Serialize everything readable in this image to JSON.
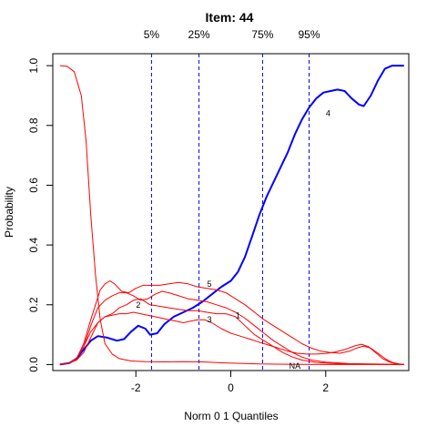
{
  "chart_data": {
    "type": "line",
    "title": "Item:  44",
    "xlabel": "Norm 0 1 Quantiles",
    "ylabel": "Probability",
    "xlim": [
      -3.75,
      3.75
    ],
    "ylim": [
      -0.02,
      1.04
    ],
    "x_ticks": [
      -2,
      0,
      2
    ],
    "x_tick_labels": [
      "-2",
      "0",
      "2"
    ],
    "y_ticks": [
      0.0,
      0.2,
      0.4,
      0.6,
      0.8,
      1.0
    ],
    "y_tick_labels": [
      "0.0",
      "0.2",
      "0.4",
      "0.6",
      "0.8",
      "1.0"
    ],
    "grid": false,
    "quantiles": [
      {
        "label": "5%",
        "x": -1.67
      },
      {
        "label": "25%",
        "x": -0.67
      },
      {
        "label": "75%",
        "x": 0.67
      },
      {
        "label": "95%",
        "x": 1.65
      }
    ],
    "series": [
      {
        "name": "4",
        "color": "#0000ff",
        "label_at": [
          2.05,
          0.84
        ],
        "points": [
          [
            -3.6,
            0.0
          ],
          [
            -3.4,
            0.005
          ],
          [
            -3.25,
            0.02
          ],
          [
            -3.1,
            0.05
          ],
          [
            -2.95,
            0.08
          ],
          [
            -2.8,
            0.095
          ],
          [
            -2.6,
            0.09
          ],
          [
            -2.4,
            0.08
          ],
          [
            -2.25,
            0.085
          ],
          [
            -2.1,
            0.11
          ],
          [
            -1.95,
            0.13
          ],
          [
            -1.8,
            0.12
          ],
          [
            -1.7,
            0.1
          ],
          [
            -1.55,
            0.105
          ],
          [
            -1.4,
            0.135
          ],
          [
            -1.2,
            0.16
          ],
          [
            -1.0,
            0.175
          ],
          [
            -0.8,
            0.19
          ],
          [
            -0.6,
            0.21
          ],
          [
            -0.4,
            0.235
          ],
          [
            -0.2,
            0.26
          ],
          [
            0.0,
            0.28
          ],
          [
            0.15,
            0.31
          ],
          [
            0.3,
            0.36
          ],
          [
            0.45,
            0.43
          ],
          [
            0.6,
            0.5
          ],
          [
            0.75,
            0.56
          ],
          [
            0.9,
            0.61
          ],
          [
            1.05,
            0.66
          ],
          [
            1.2,
            0.71
          ],
          [
            1.35,
            0.77
          ],
          [
            1.5,
            0.82
          ],
          [
            1.65,
            0.86
          ],
          [
            1.8,
            0.89
          ],
          [
            1.95,
            0.91
          ],
          [
            2.1,
            0.915
          ],
          [
            2.25,
            0.92
          ],
          [
            2.4,
            0.915
          ],
          [
            2.55,
            0.89
          ],
          [
            2.7,
            0.87
          ],
          [
            2.8,
            0.865
          ],
          [
            2.95,
            0.9
          ],
          [
            3.1,
            0.95
          ],
          [
            3.25,
            0.99
          ],
          [
            3.4,
            1.0
          ],
          [
            3.65,
            1.0
          ]
        ]
      },
      {
        "name": "1",
        "color": "#ff0000",
        "label_at": [
          0.15,
          0.165
        ],
        "points": [
          [
            -3.6,
            0.0
          ],
          [
            -3.4,
            0.005
          ],
          [
            -3.25,
            0.02
          ],
          [
            -3.1,
            0.06
          ],
          [
            -2.95,
            0.11
          ],
          [
            -2.8,
            0.14
          ],
          [
            -2.65,
            0.16
          ],
          [
            -2.5,
            0.17
          ],
          [
            -2.35,
            0.19
          ],
          [
            -2.2,
            0.2
          ],
          [
            -2.05,
            0.215
          ],
          [
            -1.9,
            0.22
          ],
          [
            -1.7,
            0.2
          ],
          [
            -1.5,
            0.195
          ],
          [
            -1.3,
            0.19
          ],
          [
            -1.1,
            0.185
          ],
          [
            -0.9,
            0.18
          ],
          [
            -0.7,
            0.18
          ],
          [
            -0.5,
            0.175
          ],
          [
            -0.3,
            0.17
          ],
          [
            -0.1,
            0.17
          ],
          [
            0.1,
            0.16
          ],
          [
            0.3,
            0.13
          ],
          [
            0.5,
            0.1
          ],
          [
            0.7,
            0.08
          ],
          [
            0.9,
            0.06
          ],
          [
            1.1,
            0.04
          ],
          [
            1.3,
            0.025
          ],
          [
            1.5,
            0.015
          ],
          [
            1.8,
            0.007
          ],
          [
            2.2,
            0.003
          ],
          [
            3.0,
            0.001
          ],
          [
            3.65,
            0.0
          ]
        ]
      },
      {
        "name": "2",
        "color": "#ff0000",
        "label_at": [
          -1.95,
          0.2
        ],
        "points": [
          [
            -3.6,
            0.0
          ],
          [
            -3.4,
            0.005
          ],
          [
            -3.25,
            0.02
          ],
          [
            -3.1,
            0.06
          ],
          [
            -2.95,
            0.13
          ],
          [
            -2.8,
            0.19
          ],
          [
            -2.65,
            0.215
          ],
          [
            -2.5,
            0.23
          ],
          [
            -2.35,
            0.24
          ],
          [
            -2.2,
            0.24
          ],
          [
            -2.05,
            0.23
          ],
          [
            -1.9,
            0.215
          ],
          [
            -1.75,
            0.22
          ],
          [
            -1.6,
            0.235
          ],
          [
            -1.45,
            0.245
          ],
          [
            -1.3,
            0.24
          ],
          [
            -1.1,
            0.23
          ],
          [
            -0.9,
            0.22
          ],
          [
            -0.7,
            0.215
          ],
          [
            -0.5,
            0.21
          ],
          [
            -0.3,
            0.2
          ],
          [
            -0.1,
            0.19
          ],
          [
            0.1,
            0.175
          ],
          [
            0.3,
            0.155
          ],
          [
            0.5,
            0.13
          ],
          [
            0.7,
            0.105
          ],
          [
            0.9,
            0.08
          ],
          [
            1.1,
            0.06
          ],
          [
            1.3,
            0.04
          ],
          [
            1.5,
            0.025
          ],
          [
            1.7,
            0.015
          ],
          [
            2.0,
            0.008
          ],
          [
            2.5,
            0.003
          ],
          [
            3.65,
            0.0
          ]
        ]
      },
      {
        "name": "3",
        "color": "#ff0000",
        "label_at": [
          -0.45,
          0.15
        ],
        "points": [
          [
            -3.6,
            0.0
          ],
          [
            -3.4,
            0.005
          ],
          [
            -3.25,
            0.015
          ],
          [
            -3.1,
            0.04
          ],
          [
            -2.95,
            0.09
          ],
          [
            -2.8,
            0.14
          ],
          [
            -2.65,
            0.16
          ],
          [
            -2.5,
            0.165
          ],
          [
            -2.35,
            0.17
          ],
          [
            -2.2,
            0.17
          ],
          [
            -2.05,
            0.175
          ],
          [
            -1.9,
            0.17
          ],
          [
            -1.75,
            0.165
          ],
          [
            -1.6,
            0.16
          ],
          [
            -1.45,
            0.155
          ],
          [
            -1.3,
            0.15
          ],
          [
            -1.15,
            0.145
          ],
          [
            -1.0,
            0.14
          ],
          [
            -0.85,
            0.145
          ],
          [
            -0.7,
            0.15
          ],
          [
            -0.55,
            0.15
          ],
          [
            -0.4,
            0.14
          ],
          [
            -0.2,
            0.12
          ],
          [
            0.0,
            0.105
          ],
          [
            0.2,
            0.095
          ],
          [
            0.4,
            0.085
          ],
          [
            0.6,
            0.075
          ],
          [
            0.8,
            0.065
          ],
          [
            1.0,
            0.055
          ],
          [
            1.2,
            0.045
          ],
          [
            1.4,
            0.038
          ],
          [
            1.6,
            0.035
          ],
          [
            1.8,
            0.035
          ],
          [
            2.0,
            0.037
          ],
          [
            2.2,
            0.042
          ],
          [
            2.4,
            0.05
          ],
          [
            2.6,
            0.062
          ],
          [
            2.75,
            0.068
          ],
          [
            2.9,
            0.06
          ],
          [
            3.05,
            0.04
          ],
          [
            3.2,
            0.02
          ],
          [
            3.35,
            0.008
          ],
          [
            3.5,
            0.002
          ],
          [
            3.65,
            0.0
          ]
        ]
      },
      {
        "name": "5",
        "color": "#ff0000",
        "label_at": [
          -0.45,
          0.27
        ],
        "points": [
          [
            -3.6,
            0.0
          ],
          [
            -3.4,
            0.005
          ],
          [
            -3.25,
            0.02
          ],
          [
            -3.1,
            0.07
          ],
          [
            -2.95,
            0.15
          ],
          [
            -2.85,
            0.2
          ],
          [
            -2.75,
            0.25
          ],
          [
            -2.65,
            0.27
          ],
          [
            -2.55,
            0.28
          ],
          [
            -2.45,
            0.27
          ],
          [
            -2.3,
            0.245
          ],
          [
            -2.15,
            0.24
          ],
          [
            -2.0,
            0.255
          ],
          [
            -1.85,
            0.265
          ],
          [
            -1.7,
            0.265
          ],
          [
            -1.5,
            0.265
          ],
          [
            -1.3,
            0.27
          ],
          [
            -1.1,
            0.275
          ],
          [
            -0.9,
            0.27
          ],
          [
            -0.7,
            0.26
          ],
          [
            -0.5,
            0.255
          ],
          [
            -0.3,
            0.25
          ],
          [
            -0.1,
            0.24
          ],
          [
            0.1,
            0.22
          ],
          [
            0.3,
            0.2
          ],
          [
            0.5,
            0.175
          ],
          [
            0.7,
            0.15
          ],
          [
            0.9,
            0.13
          ],
          [
            1.1,
            0.11
          ],
          [
            1.3,
            0.09
          ],
          [
            1.5,
            0.07
          ],
          [
            1.7,
            0.055
          ],
          [
            1.9,
            0.045
          ],
          [
            2.1,
            0.04
          ],
          [
            2.3,
            0.038
          ],
          [
            2.5,
            0.045
          ],
          [
            2.65,
            0.055
          ],
          [
            2.8,
            0.062
          ],
          [
            2.95,
            0.055
          ],
          [
            3.1,
            0.038
          ],
          [
            3.25,
            0.02
          ],
          [
            3.4,
            0.007
          ],
          [
            3.55,
            0.002
          ],
          [
            3.65,
            0.0
          ]
        ]
      },
      {
        "name": "NA",
        "color": "#ff0000",
        "label_at": [
          1.35,
          -0.005
        ],
        "points": [
          [
            -3.6,
            1.0
          ],
          [
            -3.45,
            0.998
          ],
          [
            -3.3,
            0.98
          ],
          [
            -3.15,
            0.9
          ],
          [
            -3.05,
            0.75
          ],
          [
            -2.95,
            0.5
          ],
          [
            -2.85,
            0.3
          ],
          [
            -2.75,
            0.15
          ],
          [
            -2.65,
            0.07
          ],
          [
            -2.5,
            0.035
          ],
          [
            -2.35,
            0.02
          ],
          [
            -2.1,
            0.012
          ],
          [
            -1.8,
            0.01
          ],
          [
            -1.4,
            0.009
          ],
          [
            -1.0,
            0.01
          ],
          [
            -0.6,
            0.009
          ],
          [
            -0.2,
            0.006
          ],
          [
            0.2,
            0.004
          ],
          [
            0.6,
            0.002
          ],
          [
            1.2,
            0.001
          ],
          [
            2.0,
            0.0
          ],
          [
            3.65,
            0.0
          ]
        ]
      }
    ]
  }
}
